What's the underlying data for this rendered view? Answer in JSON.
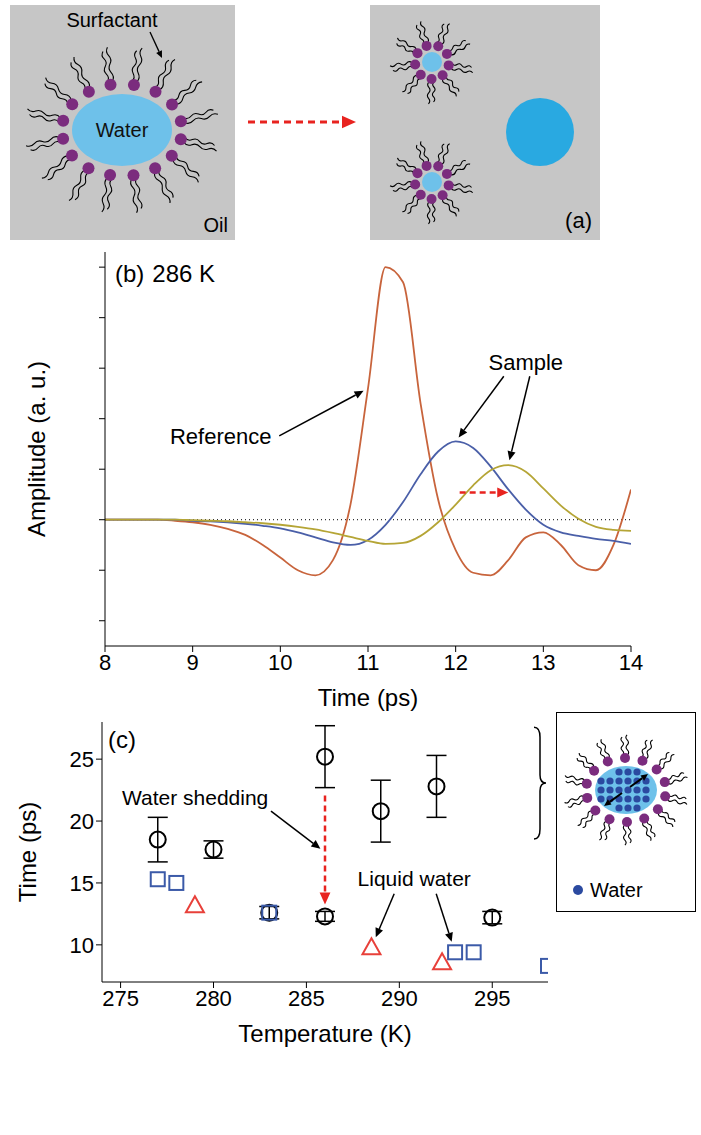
{
  "diagram_a": {
    "panel": "(a)",
    "surfactant": "Surfactant",
    "water": "Water",
    "oil": "Oil"
  },
  "chart_data": [
    {
      "type": "line",
      "panel": "(b)",
      "annotations": [
        "286 K",
        "Reference",
        "Sample"
      ],
      "x_label": "Time (ps)",
      "y_label": "Amplitude (a. u.)",
      "x": [
        8,
        8.2,
        8.4,
        8.6,
        8.8,
        9,
        9.2,
        9.4,
        9.6,
        9.8,
        10,
        10.2,
        10.4,
        10.6,
        10.8,
        11,
        11.2,
        11.4,
        11.6,
        11.8,
        12,
        12.2,
        12.4,
        12.6,
        12.8,
        13,
        13.2,
        13.4,
        13.6,
        13.8,
        14
      ],
      "series": [
        {
          "color": "#c8643c",
          "values": [
            0,
            0,
            0,
            0,
            -0.02,
            -0.05,
            -0.1,
            -0.18,
            -0.3,
            -0.5,
            -0.75,
            -1.0,
            -1.1,
            -0.8,
            0.3,
            2.6,
            5.0,
            4.7,
            2.3,
            0.4,
            -0.6,
            -1.05,
            -1.1,
            -0.8,
            -0.35,
            -0.25,
            -0.5,
            -0.9,
            -1.0,
            -0.5,
            0.6
          ]
        },
        {
          "color": "#4a5fa8",
          "values": [
            0,
            0,
            0,
            0,
            0,
            -0.02,
            -0.03,
            -0.05,
            -0.08,
            -0.12,
            -0.17,
            -0.25,
            -0.35,
            -0.45,
            -0.5,
            -0.4,
            -0.1,
            0.35,
            0.9,
            1.35,
            1.55,
            1.42,
            1.05,
            0.6,
            0.2,
            -0.1,
            -0.25,
            -0.32,
            -0.38,
            -0.42,
            -0.48
          ]
        },
        {
          "color": "#b5a536",
          "values": [
            0,
            0,
            0,
            0,
            0,
            -0.01,
            -0.02,
            -0.03,
            -0.05,
            -0.07,
            -0.1,
            -0.14,
            -0.19,
            -0.26,
            -0.34,
            -0.42,
            -0.48,
            -0.46,
            -0.32,
            -0.05,
            0.3,
            0.68,
            0.98,
            1.08,
            0.95,
            0.62,
            0.28,
            0.02,
            -0.14,
            -0.2,
            -0.22
          ]
        }
      ],
      "xlim": [
        8,
        14
      ],
      "xticks": [
        8,
        9,
        10,
        11,
        12,
        13,
        14
      ],
      "ylim": [
        -2.5,
        5.3
      ],
      "yticks": [
        -2,
        -1,
        0,
        1,
        2,
        3,
        4,
        5
      ],
      "tick_labels": "x",
      "baseline": 0
    },
    {
      "type": "scatter",
      "panel": "(c)",
      "annotations": [
        "Water shedding",
        "Liquid water"
      ],
      "inset_label": "Water",
      "x_label": "Temperature (K)",
      "y_label": "Time (ps)",
      "series": [
        {
          "color": "#000000",
          "marker": "circle",
          "x": [
            277,
            280,
            283,
            286,
            286,
            289,
            292,
            295
          ],
          "values": [
            18.5,
            17.7,
            12.6,
            25.2,
            12.3,
            20.8,
            22.8,
            12.2
          ],
          "errors": [
            1.8,
            0.7,
            0.5,
            2.5,
            0.4,
            2.5,
            2.5,
            0.5
          ]
        },
        {
          "color": "#3b5aa8",
          "marker": "square",
          "x": [
            277,
            278,
            283,
            293,
            294,
            298
          ],
          "values": [
            15.3,
            15.0,
            12.6,
            9.4,
            9.4,
            8.3
          ]
        },
        {
          "color": "#e8403a",
          "marker": "triangle",
          "x": [
            279,
            288.5,
            292.3
          ],
          "values": [
            13.2,
            9.8,
            8.6
          ]
        }
      ],
      "xlim": [
        274,
        298
      ],
      "xticks": [
        275,
        280,
        285,
        290,
        295
      ],
      "ylim": [
        7,
        28
      ],
      "yticks": [
        10,
        15,
        20,
        25
      ]
    }
  ]
}
